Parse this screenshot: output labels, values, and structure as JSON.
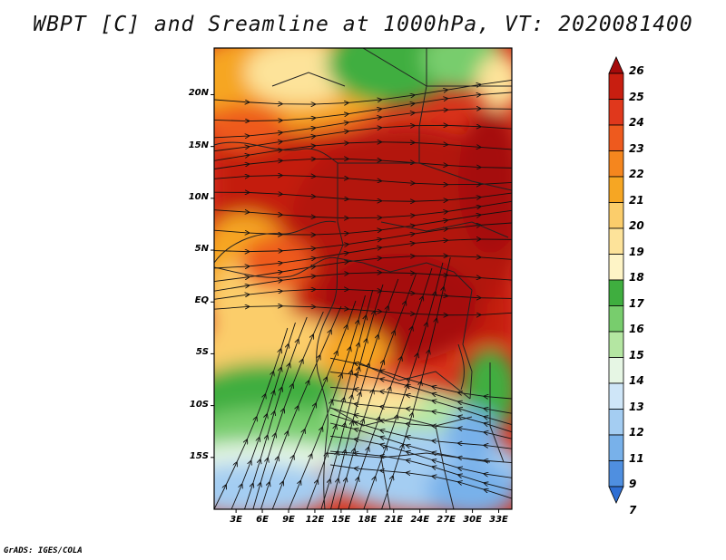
{
  "title": "WBPT [C] and Sreamline at 1000hPa, VT: 2020081400",
  "footer": "GrADS: IGES/COLA",
  "lat_ticks": [
    {
      "label": "20N",
      "value": 20
    },
    {
      "label": "15N",
      "value": 15
    },
    {
      "label": "10N",
      "value": 10
    },
    {
      "label": "5N",
      "value": 5
    },
    {
      "label": "EQ",
      "value": 0
    },
    {
      "label": "5S",
      "value": -5
    },
    {
      "label": "10S",
      "value": -10
    },
    {
      "label": "15S",
      "value": -15
    }
  ],
  "lon_ticks": [
    {
      "label": "3E",
      "value": 3
    },
    {
      "label": "6E",
      "value": 6
    },
    {
      "label": "9E",
      "value": 9
    },
    {
      "label": "12E",
      "value": 12
    },
    {
      "label": "15E",
      "value": 15
    },
    {
      "label": "18E",
      "value": 18
    },
    {
      "label": "21E",
      "value": 21
    },
    {
      "label": "24E",
      "value": 24
    },
    {
      "label": "27E",
      "value": 27
    },
    {
      "label": "30E",
      "value": 30
    },
    {
      "label": "33E",
      "value": 33
    }
  ],
  "map_extent": {
    "lon_min": 0.5,
    "lon_max": 34.5,
    "lat_min": -20,
    "lat_max": 24.5
  },
  "colorbar": {
    "labels": [
      "26",
      "25",
      "24",
      "23",
      "22",
      "21",
      "20",
      "19",
      "18",
      "17",
      "16",
      "15",
      "14",
      "13",
      "12",
      "11",
      "9",
      "7"
    ],
    "colors": [
      "#a50a0a",
      "#c81e10",
      "#e0381c",
      "#ee5a1e",
      "#f5861e",
      "#f6a623",
      "#fbcd6b",
      "#fde39a",
      "#fef4c6",
      "#3fae3f",
      "#78cd6d",
      "#b4e6a2",
      "#e6f6e4",
      "#cfe6f8",
      "#a4cdf2",
      "#78b1ea",
      "#4f8fe0",
      "#2f6fd4"
    ]
  }
}
